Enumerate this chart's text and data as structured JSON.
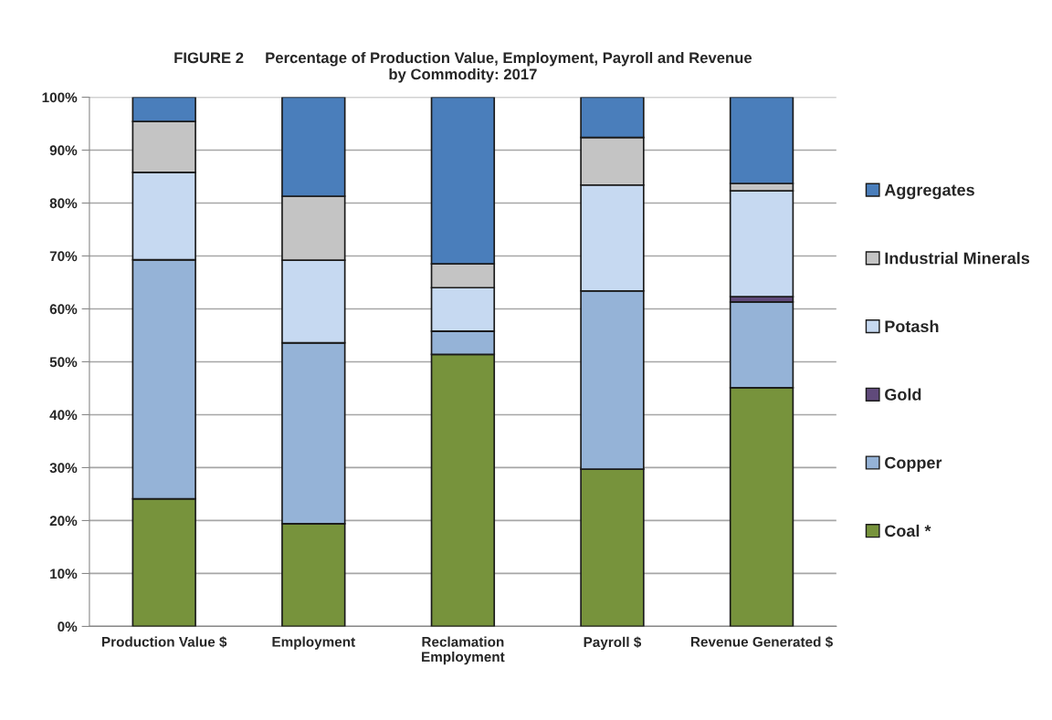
{
  "chart_data": {
    "type": "bar",
    "stacked": true,
    "title": "FIGURE 2     Percentage of Production Value, Employment, Payroll and Revenue\nby Commodity: 2017",
    "categories": [
      "Production Value $",
      "Employment",
      "Reclamation\nEmployment",
      "Payroll $",
      "Revenue Generated $"
    ],
    "series": [
      {
        "name": "Coal *",
        "color": "#77933c",
        "values": [
          24.1,
          19.4,
          51.4,
          29.7,
          45.1
        ]
      },
      {
        "name": "Copper",
        "color": "#95b3d7",
        "values": [
          45.2,
          34.2,
          4.4,
          33.7,
          16.2
        ]
      },
      {
        "name": "Gold",
        "color": "#604a7b",
        "values": [
          0,
          0,
          0,
          0,
          1.0
        ]
      },
      {
        "name": "Potash",
        "color": "#c6d9f1",
        "values": [
          16.5,
          15.6,
          8.2,
          20.0,
          20.0
        ]
      },
      {
        "name": "Industrial Minerals",
        "color": "#c4c4c4",
        "values": [
          9.6,
          12.1,
          4.5,
          9.0,
          1.4
        ]
      },
      {
        "name": "Aggregates",
        "color": "#4a7ebb",
        "values": [
          4.6,
          18.7,
          31.5,
          7.6,
          16.3
        ]
      }
    ],
    "ylim": [
      0,
      100
    ],
    "yticks": [
      {
        "value": 0,
        "label": "0%"
      },
      {
        "value": 10,
        "label": "10%"
      },
      {
        "value": 20,
        "label": "20%"
      },
      {
        "value": 30,
        "label": "30%"
      },
      {
        "value": 40,
        "label": "40%"
      },
      {
        "value": 50,
        "label": "50%"
      },
      {
        "value": 60,
        "label": "60%"
      },
      {
        "value": 70,
        "label": "70%"
      },
      {
        "value": 80,
        "label": "80%"
      },
      {
        "value": 90,
        "label": "90%"
      },
      {
        "value": 100,
        "label": "100%"
      }
    ],
    "grid": "y",
    "legend": "right"
  }
}
